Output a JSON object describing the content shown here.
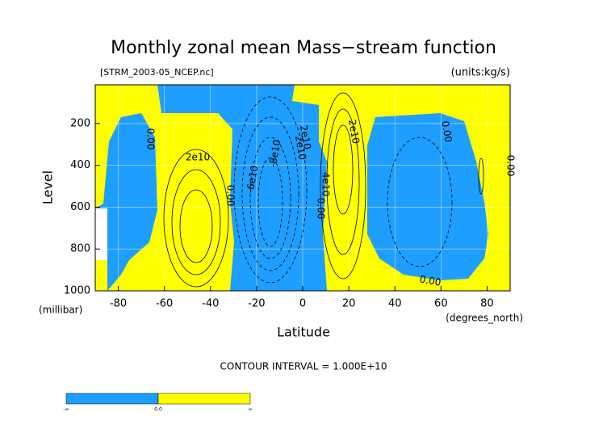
{
  "chart_data": {
    "type": "contour",
    "title": "Monthly zonal mean Mass−stream function",
    "subtitle": "[STRM_2003-05_NCEP.nc]",
    "units": "(units:kg/s)",
    "x_label": "Latitude",
    "x_units": "(degrees_north)",
    "y_label": "Level",
    "y_units": "(millibar)",
    "xlim": [
      -90,
      90
    ],
    "xticks": [
      -80,
      -60,
      -40,
      -20,
      0,
      20,
      40,
      60,
      80
    ],
    "ylim": [
      1000,
      15
    ],
    "yticks": [
      200,
      400,
      600,
      800,
      1000
    ],
    "grid": true,
    "contour_labels": [
      "0.00",
      "2e10",
      "0.00",
      "-6e10",
      "-8e10",
      "2e10",
      "2e10",
      "4e10",
      "0.00",
      "2e10",
      "0.00",
      "0.00",
      "0.00"
    ],
    "footer": "CONTOUR INTERVAL = 1.000E+10",
    "colorbar": {
      "colors": [
        "#1e9eff",
        "#ffff00"
      ],
      "labels": [
        "-∞",
        "0.0",
        "∞"
      ]
    }
  }
}
